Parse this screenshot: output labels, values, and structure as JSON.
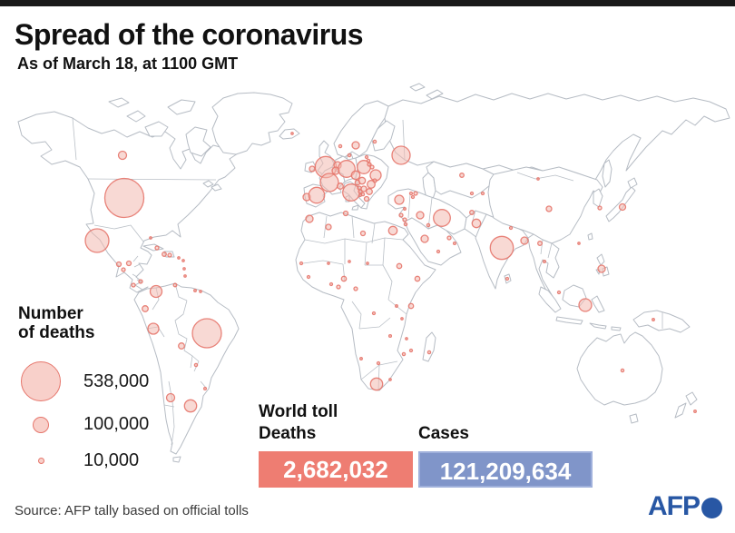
{
  "header": {
    "bar_color": "#191919",
    "title": "Spread of the coronavirus",
    "subtitle": "As of March 18, at 1100 GMT"
  },
  "legend": {
    "title_lines": [
      "Number",
      "of deaths"
    ],
    "items": [
      {
        "label": "538,000",
        "radius": 22
      },
      {
        "label": "100,000",
        "radius": 9
      },
      {
        "label": "10,000",
        "radius": 3.5
      }
    ]
  },
  "world_toll": {
    "title": "World toll",
    "deaths_label": "Deaths",
    "deaths_value": "2,682,032",
    "cases_label": "Cases",
    "cases_value": "121,209,634",
    "deaths_color": "#ee7d72",
    "cases_color": "#8095c9",
    "cases_border_color": "#9fb0db"
  },
  "source": "Source: AFP tally based on official tolls",
  "logo": {
    "text": "AFP",
    "color": "#2857a4"
  },
  "map": {
    "outline_color": "#b6bcc4",
    "bubble_fill": "#f2b9b1",
    "bubble_fill_opacity": 0.55,
    "bubble_stroke": "#e6766c",
    "bubble_stroke_opacity": 0.9,
    "legend_fill": "#f8d0ca",
    "bubbles": [
      [
        135,
        171,
        4.5,
        "canada"
      ],
      [
        137,
        218,
        21.5,
        "usa"
      ],
      [
        107,
        265,
        13,
        "mexico"
      ],
      [
        131,
        291,
        2.5,
        "guatemala"
      ],
      [
        142,
        290,
        2.5,
        "honduras"
      ],
      [
        136,
        297,
        2,
        "el-salvador"
      ],
      [
        147,
        314,
        2,
        "costa-rica"
      ],
      [
        155,
        310,
        2,
        "panama"
      ],
      [
        166,
        262,
        1.2,
        "bahamas"
      ],
      [
        173,
        273,
        2,
        "cuba"
      ],
      [
        181,
        280,
        2.3,
        "haiti"
      ],
      [
        187,
        281,
        2,
        "dominican-republic"
      ],
      [
        197,
        284,
        1.2,
        "lesser-antilles-1"
      ],
      [
        202,
        287,
        1.2,
        "lesser-antilles-2"
      ],
      [
        203,
        296,
        1.2,
        "lesser-antilles-3"
      ],
      [
        204,
        304,
        1.2,
        "trinidad"
      ],
      [
        172,
        321,
        6.5,
        "colombia"
      ],
      [
        193,
        314,
        1.8,
        "venezuela"
      ],
      [
        215,
        320,
        1.3,
        "guyana"
      ],
      [
        221,
        321,
        1.2,
        "suriname"
      ],
      [
        160,
        340,
        3.3,
        "ecuador"
      ],
      [
        169,
        362,
        6,
        "peru"
      ],
      [
        228,
        367,
        16,
        "brazil"
      ],
      [
        200,
        381,
        3.3,
        "bolivia"
      ],
      [
        216,
        402,
        1.6,
        "paraguay"
      ],
      [
        188,
        438,
        4.5,
        "chile"
      ],
      [
        210,
        447,
        6.7,
        "argentina"
      ],
      [
        226,
        428,
        1.4,
        "uruguay"
      ],
      [
        322,
        147,
        1.2,
        "iceland"
      ],
      [
        344,
        186,
        3,
        "ireland"
      ],
      [
        359,
        184,
        11.7,
        "uk"
      ],
      [
        338,
        217,
        4,
        "portugal"
      ],
      [
        349,
        215,
        8.7,
        "spain"
      ],
      [
        363,
        201,
        10,
        "france"
      ],
      [
        372,
        182,
        4,
        "netherlands"
      ],
      [
        370,
        188,
        4,
        "belgium"
      ],
      [
        382,
        186,
        9.3,
        "germany"
      ],
      [
        375,
        205,
        3.3,
        "switzerland"
      ],
      [
        387,
        212,
        9.3,
        "italy"
      ],
      [
        375,
        161,
        1.6,
        "norway"
      ],
      [
        392,
        160,
        4,
        "sweden"
      ],
      [
        413,
        156,
        1.6,
        "finland"
      ],
      [
        385,
        171,
        1.6,
        "denmark"
      ],
      [
        401,
        184,
        7.3,
        "poland"
      ],
      [
        392,
        193,
        4.7,
        "czech-republic"
      ],
      [
        394,
        201,
        2.7,
        "austria"
      ],
      [
        399,
        199,
        3.7,
        "hungary"
      ],
      [
        404,
        173,
        1.5,
        "estonia"
      ],
      [
        406,
        177,
        1.6,
        "latvia"
      ],
      [
        407,
        181,
        2,
        "lithuania"
      ],
      [
        410,
        184,
        2,
        "belarus"
      ],
      [
        414,
        193,
        6,
        "ukraine"
      ],
      [
        413,
        199,
        2,
        "moldova"
      ],
      [
        409,
        203,
        4.3,
        "romania"
      ],
      [
        407,
        211,
        3.3,
        "bulgaria"
      ],
      [
        401,
        208,
        3,
        "serbia"
      ],
      [
        396,
        207,
        2,
        "croatia"
      ],
      [
        397,
        211,
        2,
        "bosnia"
      ],
      [
        400,
        214,
        1.6,
        "north-macedonia"
      ],
      [
        397,
        215,
        1.4,
        "albania"
      ],
      [
        404,
        219,
        2.5,
        "greece"
      ],
      [
        442,
        171,
        10,
        "russia"
      ],
      [
        440,
        220,
        5,
        "turkey"
      ],
      [
        446,
        230,
        1.3,
        "cyprus"
      ],
      [
        453,
        213,
        1.5,
        "georgia"
      ],
      [
        458,
        213,
        2,
        "azerbaijan"
      ],
      [
        455,
        217,
        1.5,
        "armenia"
      ],
      [
        442,
        237,
        2,
        "lebanon"
      ],
      [
        446,
        242,
        2,
        "israel"
      ],
      [
        447,
        247,
        1.6,
        "jordan"
      ],
      [
        463,
        237,
        4,
        "iraq"
      ],
      [
        472,
        248,
        1.6,
        "kuwait"
      ],
      [
        468,
        263,
        4,
        "saudi-arabia"
      ],
      [
        487,
        240,
        9.3,
        "iran"
      ],
      [
        495,
        262,
        2,
        "uae"
      ],
      [
        501,
        268,
        1.4,
        "oman"
      ],
      [
        483,
        277,
        1.5,
        "yemen"
      ],
      [
        433,
        254,
        4.7,
        "egypt"
      ],
      [
        341,
        241,
        4,
        "morocco"
      ],
      [
        362,
        250,
        3,
        "algeria"
      ],
      [
        381,
        235,
        2.5,
        "tunisia"
      ],
      [
        400,
        257,
        2.5,
        "libya"
      ],
      [
        332,
        290,
        1.5,
        "senegal"
      ],
      [
        362,
        290,
        1.2,
        "mali"
      ],
      [
        385,
        288,
        1.2,
        "niger"
      ],
      [
        405,
        290,
        1.2,
        "chad"
      ],
      [
        440,
        293,
        2.7,
        "sudan"
      ],
      [
        460,
        307,
        2.7,
        "ethiopia"
      ],
      [
        340,
        305,
        1.5,
        "guinea"
      ],
      [
        365,
        313,
        1.5,
        "ivory-coast"
      ],
      [
        373,
        316,
        2,
        "ghana"
      ],
      [
        379,
        307,
        2.7,
        "nigeria"
      ],
      [
        392,
        318,
        2,
        "cameroon"
      ],
      [
        412,
        345,
        1.5,
        "dr-congo"
      ],
      [
        437,
        337,
        1.3,
        "uganda"
      ],
      [
        453,
        337,
        2.7,
        "kenya"
      ],
      [
        443,
        351,
        1.2,
        "tanzania"
      ],
      [
        430,
        370,
        1.4,
        "zambia"
      ],
      [
        448,
        373,
        1.2,
        "malawi"
      ],
      [
        445,
        390,
        1.6,
        "zimbabwe"
      ],
      [
        453,
        386,
        1.5,
        "mozambique"
      ],
      [
        473,
        388,
        1.6,
        "madagascar"
      ],
      [
        398,
        395,
        1.3,
        "namibia"
      ],
      [
        417,
        400,
        1.5,
        "botswana"
      ],
      [
        415,
        423,
        6.7,
        "south-africa"
      ],
      [
        430,
        418,
        1.2,
        "eswatini"
      ],
      [
        509,
        193,
        2.3,
        "kazakhstan"
      ],
      [
        520,
        213,
        1.5,
        "uzbekistan"
      ],
      [
        532,
        213,
        1.5,
        "kyrgyzstan"
      ],
      [
        520,
        234,
        2.3,
        "afghanistan"
      ],
      [
        525,
        246,
        4.7,
        "pakistan"
      ],
      [
        553,
        273,
        12.7,
        "india"
      ],
      [
        563,
        251,
        1.5,
        "nepal"
      ],
      [
        578,
        265,
        4,
        "bangladesh"
      ],
      [
        559,
        307,
        1.5,
        "sri-lanka"
      ],
      [
        595,
        268,
        2.3,
        "myanmar"
      ],
      [
        600,
        288,
        1.4,
        "thailand"
      ],
      [
        605,
        230,
        3,
        "china"
      ],
      [
        593,
        197,
        1.2,
        "mongolia"
      ],
      [
        661,
        229,
        2,
        "south-korea"
      ],
      [
        686,
        228,
        3.5,
        "japan"
      ],
      [
        638,
        268,
        1.2,
        "hong-kong"
      ],
      [
        663,
        296,
        4,
        "philippines"
      ],
      [
        616,
        322,
        1.5,
        "malaysia"
      ],
      [
        645,
        336,
        7,
        "indonesia"
      ],
      [
        686,
        408,
        1.6,
        "australia"
      ],
      [
        720,
        352,
        1.3,
        "papua-new-guinea"
      ],
      [
        766,
        453,
        1.3,
        "new-zealand"
      ]
    ]
  }
}
